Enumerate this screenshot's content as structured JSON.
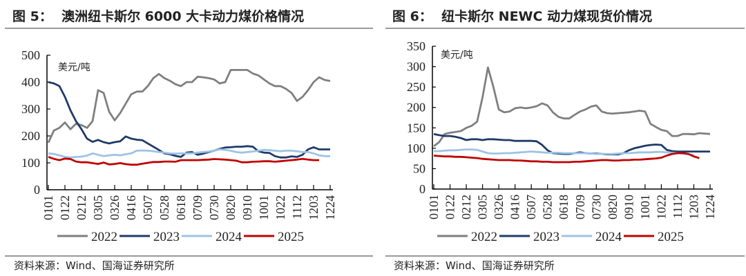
{
  "source_left": "资料来源：Wind、国海证券研究所",
  "source_right": "资料来源：Wind、国海证券研究所",
  "colors": {
    "2022": "#7f7f7f",
    "2023": "#1f3a68",
    "2024": "#9dc3e6",
    "2025": "#c00000"
  },
  "chart_data": [
    {
      "type": "line",
      "title": "图 5：  澳洲纽卡斯尔 6000 大卡动力煤价格情况",
      "ylabel": "美元/吨",
      "ylim": [
        0,
        500
      ],
      "yticks": [
        0,
        100,
        200,
        300,
        400,
        500
      ],
      "xticks": [
        "0101",
        "0122",
        "0212",
        "0305",
        "0326",
        "0416",
        "0507",
        "0528",
        "0618",
        "0709",
        "0730",
        "0820",
        "0910",
        "1001",
        "1022",
        "1112",
        "1203",
        "1224"
      ],
      "x_unit": "week index (0 = 0101, 51 = 1224)",
      "legend": "bottom",
      "series": [
        {
          "name": "2022",
          "values": [
            175,
            220,
            230,
            250,
            225,
            245,
            240,
            230,
            255,
            370,
            360,
            290,
            258,
            285,
            320,
            355,
            365,
            365,
            385,
            415,
            430,
            415,
            405,
            392,
            385,
            400,
            400,
            420,
            418,
            415,
            410,
            395,
            400,
            445,
            445,
            445,
            445,
            432,
            425,
            410,
            395,
            385,
            385,
            375,
            360,
            330,
            345,
            370,
            400,
            418,
            408,
            404
          ]
        },
        {
          "name": "2023",
          "values": [
            400,
            395,
            385,
            345,
            295,
            255,
            225,
            190,
            178,
            185,
            177,
            172,
            177,
            180,
            198,
            190,
            186,
            184,
            172,
            160,
            148,
            135,
            132,
            126,
            122,
            138,
            140,
            130,
            134,
            140,
            145,
            152,
            157,
            158,
            160,
            160,
            162,
            160,
            143,
            138,
            137,
            125,
            120,
            120,
            124,
            122,
            130,
            150,
            158,
            150,
            150,
            150
          ]
        },
        {
          "name": "2024",
          "values": [
            135,
            133,
            128,
            122,
            120,
            122,
            123,
            127,
            135,
            130,
            125,
            128,
            130,
            128,
            132,
            135,
            145,
            146,
            145,
            143,
            140,
            138,
            135,
            134,
            135,
            135,
            135,
            138,
            140,
            142,
            145,
            150,
            148,
            145,
            140,
            138,
            140,
            142,
            145,
            148,
            147,
            145,
            143,
            145,
            145,
            143,
            140,
            140,
            135,
            128,
            125,
            125
          ]
        },
        {
          "name": "2025",
          "values": [
            122,
            115,
            110,
            116,
            114,
            105,
            102,
            102,
            99,
            96,
            101,
            94,
            96,
            99,
            95,
            93,
            93,
            97,
            100,
            103,
            103,
            105,
            105,
            104,
            110,
            110,
            110,
            110,
            111,
            112,
            114,
            113,
            112,
            110,
            108,
            102,
            102,
            104,
            105,
            106,
            106,
            104,
            106,
            108,
            110,
            112,
            115,
            112,
            110,
            110
          ]
        }
      ]
    },
    {
      "type": "line",
      "title": "图 6：  纽卡斯尔 NEWC 动力煤现货价情况",
      "ylabel": "美元/吨",
      "ylim": [
        0,
        350
      ],
      "yticks": [
        0,
        50,
        100,
        150,
        200,
        250,
        300,
        350
      ],
      "xticks": [
        "0101",
        "0122",
        "0212",
        "0305",
        "0326",
        "0416",
        "0507",
        "0528",
        "0618",
        "0709",
        "0730",
        "0820",
        "0910",
        "1001",
        "1022",
        "1112",
        "1203",
        "1224"
      ],
      "x_unit": "week index (0 = 0101, 51 = 1224)",
      "legend": "bottom",
      "series": [
        {
          "name": "2022",
          "values": [
            105,
            115,
            135,
            138,
            140,
            142,
            150,
            155,
            165,
            225,
            298,
            250,
            195,
            188,
            190,
            198,
            200,
            198,
            200,
            203,
            210,
            205,
            188,
            177,
            173,
            173,
            182,
            190,
            195,
            202,
            205,
            190,
            186,
            185,
            186,
            187,
            188,
            190,
            192,
            190,
            160,
            152,
            145,
            142,
            130,
            130,
            135,
            135,
            134,
            137,
            136,
            135
          ]
        },
        {
          "name": "2023",
          "values": [
            135,
            132,
            130,
            130,
            128,
            125,
            120,
            122,
            122,
            120,
            122,
            122,
            121,
            120,
            120,
            118,
            118,
            118,
            118,
            117,
            108,
            95,
            88,
            87,
            86,
            86,
            88,
            90,
            88,
            87,
            87,
            86,
            85,
            85,
            85,
            88,
            95,
            100,
            103,
            106,
            108,
            109,
            108,
            96,
            93,
            92,
            92,
            92,
            92,
            92,
            92,
            92
          ]
        },
        {
          "name": "2024",
          "values": [
            93,
            93,
            94,
            95,
            95,
            96,
            97,
            97,
            96,
            92,
            88,
            87,
            87,
            88,
            88,
            89,
            90,
            91,
            92,
            91,
            90,
            89,
            89,
            89,
            88,
            88,
            88,
            88,
            88,
            87,
            86,
            86,
            86,
            86,
            87,
            88,
            88,
            89,
            90,
            90,
            90,
            91,
            91,
            90,
            89,
            88,
            87,
            85,
            84
          ]
        },
        {
          "name": "2025",
          "values": [
            82,
            81,
            80,
            80,
            79,
            79,
            78,
            77,
            76,
            74,
            73,
            72,
            71,
            71,
            71,
            70,
            70,
            69,
            68,
            68,
            67,
            67,
            66,
            66,
            66,
            66,
            67,
            67,
            68,
            69,
            70,
            71,
            71,
            70,
            70,
            71,
            71,
            72,
            72,
            73,
            74,
            75,
            77,
            82,
            86,
            88,
            88,
            86,
            80,
            76
          ]
        }
      ]
    }
  ]
}
